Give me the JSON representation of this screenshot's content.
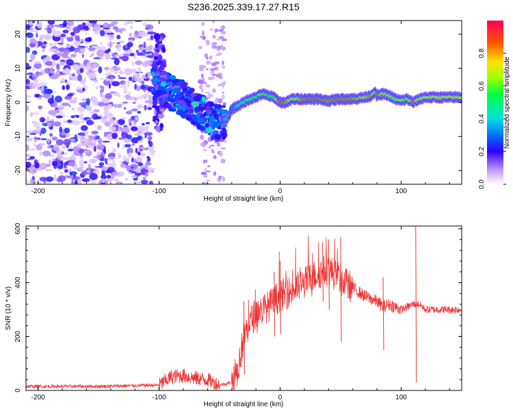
{
  "title": "S236.2025.339.17.27.R15",
  "chart_data": [
    {
      "type": "heatmap",
      "name": "spectrogram",
      "xlabel": "Height of straight line (km)",
      "ylabel": "Frequency (Hz)",
      "xlim": [
        -210,
        150
      ],
      "ylim": [
        -24,
        24
      ],
      "xticks": [
        -200,
        -100,
        0,
        100
      ],
      "yticks": [
        -20,
        -10,
        0,
        10,
        20
      ],
      "colorbar": {
        "label": "Normalized spectral amplitude",
        "range": [
          0,
          1
        ],
        "ticks": [
          0.0,
          0.2,
          0.4,
          0.6,
          0.8
        ]
      },
      "ridge": {
        "x": [
          -48,
          -44,
          -40,
          -35,
          -30,
          -25,
          -20,
          -15,
          -10,
          -5,
          0,
          5,
          10,
          20,
          30,
          40,
          50,
          60,
          70,
          75,
          78,
          80,
          85,
          90,
          95,
          100,
          105,
          110,
          115,
          120,
          130,
          140,
          150
        ],
        "freq": [
          -5,
          -5,
          -2,
          -1,
          0,
          1,
          1.5,
          2.5,
          2,
          1.5,
          0,
          0,
          1,
          1,
          1,
          0.5,
          1,
          1,
          1.5,
          2,
          3,
          2,
          2.5,
          2,
          1,
          0.5,
          1,
          0,
          1,
          1.5,
          1.5,
          1.5,
          1.5
        ],
        "amp": [
          0.3,
          0.4,
          0.3,
          0.4,
          0.45,
          0.5,
          0.55,
          0.6,
          0.55,
          0.55,
          0.95,
          0.85,
          0.65,
          0.9,
          0.95,
          0.85,
          0.9,
          0.85,
          0.75,
          0.85,
          0.6,
          0.95,
          0.7,
          0.7,
          0.65,
          0.65,
          0.6,
          0.9,
          0.7,
          0.75,
          0.75,
          0.75,
          0.75
        ]
      }
    },
    {
      "type": "line",
      "name": "snr",
      "xlabel": "Height of straight line (km)",
      "ylabel": "SNR (10 * v/v)",
      "xlim": [
        -210,
        150
      ],
      "ylim": [
        0,
        610
      ],
      "xticks": [
        -200,
        -100,
        0,
        100
      ],
      "yticks": [
        0,
        200,
        400,
        600
      ],
      "color": "#ee3333",
      "x": [
        -210,
        -150,
        -100,
        -90,
        -80,
        -70,
        -60,
        -50,
        -40,
        -35,
        -30,
        -25,
        -20,
        -10,
        0,
        10,
        20,
        30,
        35,
        40,
        45,
        50,
        60,
        70,
        80,
        85,
        90,
        95,
        100,
        105,
        110,
        115,
        120,
        130,
        140,
        150
      ],
      "snr": [
        15,
        15,
        20,
        50,
        55,
        45,
        40,
        20,
        30,
        80,
        200,
        250,
        290,
        310,
        350,
        370,
        400,
        430,
        440,
        450,
        430,
        410,
        380,
        350,
        330,
        310,
        320,
        310,
        300,
        310,
        320,
        320,
        300,
        300,
        300,
        300
      ],
      "spikes": [
        {
          "x": 112,
          "high": 610,
          "low": 30
        },
        {
          "x": 85,
          "high": 420,
          "low": 150
        },
        {
          "x": 50,
          "high": 570,
          "low": 180
        },
        {
          "x": 40,
          "high": 560,
          "low": 300
        },
        {
          "x": 35,
          "high": 550,
          "low": 330
        },
        {
          "x": 0,
          "high": 480,
          "low": 210
        },
        {
          "x": -30,
          "high": 330,
          "low": 60
        },
        {
          "x": -5,
          "high": 440,
          "low": 200
        }
      ]
    }
  ]
}
